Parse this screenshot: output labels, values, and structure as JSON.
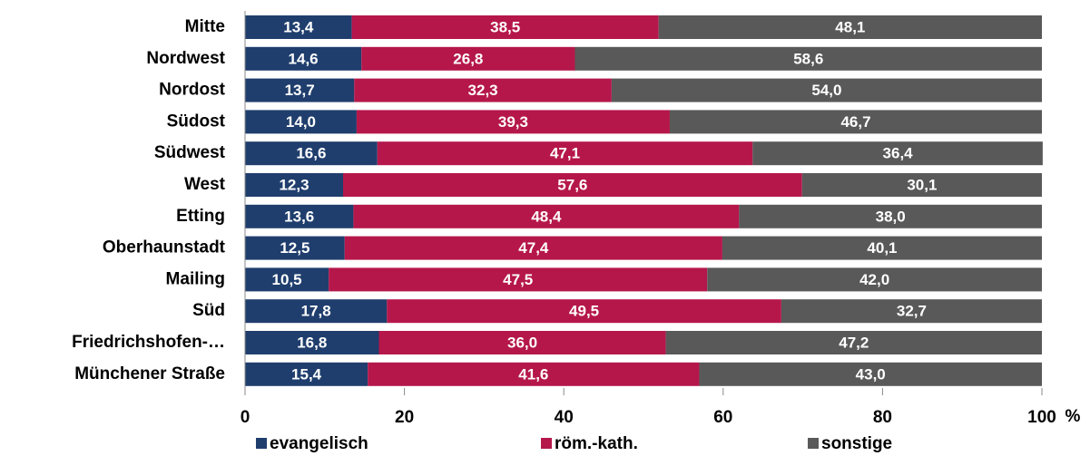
{
  "chart_data": {
    "type": "stacked-barh",
    "categories": [
      "Mitte",
      "Nordwest",
      "Nordost",
      "Südost",
      "Südwest",
      "West",
      "Etting",
      "Oberhaunstadt",
      "Mailing",
      "Süd",
      "Friedrichshofen-…",
      "Münchener Straße"
    ],
    "series": [
      {
        "name": "evangelisch",
        "color": "#1f3e6d",
        "values": [
          13.4,
          14.6,
          13.7,
          14.0,
          16.6,
          12.3,
          13.6,
          12.5,
          10.5,
          17.8,
          16.8,
          15.4
        ],
        "value_labels": [
          "13,4",
          "14,6",
          "13,7",
          "14,0",
          "16,6",
          "12,3",
          "13,6",
          "12,5",
          "10,5",
          "17,8",
          "16,8",
          "15,4"
        ]
      },
      {
        "name": "röm.-kath.",
        "color": "#b5174b",
        "values": [
          38.5,
          26.8,
          32.3,
          39.3,
          47.1,
          57.6,
          48.4,
          47.4,
          47.5,
          49.5,
          36.0,
          41.6
        ],
        "value_labels": [
          "38,5",
          "26,8",
          "32,3",
          "39,3",
          "47,1",
          "57,6",
          "48,4",
          "47,4",
          "47,5",
          "49,5",
          "36,0",
          "41,6"
        ]
      },
      {
        "name": "sonstige",
        "color": "#595959",
        "values": [
          48.1,
          58.6,
          54.0,
          46.7,
          36.4,
          30.1,
          38.0,
          40.1,
          42.0,
          32.7,
          47.2,
          43.0
        ],
        "value_labels": [
          "48,1",
          "58,6",
          "54,0",
          "46,7",
          "36,4",
          "30,1",
          "38,0",
          "40,1",
          "42,0",
          "32,7",
          "47,2",
          "43,0"
        ]
      }
    ],
    "x_label": "%",
    "xlim": [
      0,
      100
    ],
    "xticks": [
      0,
      20,
      40,
      60,
      80,
      100
    ]
  }
}
